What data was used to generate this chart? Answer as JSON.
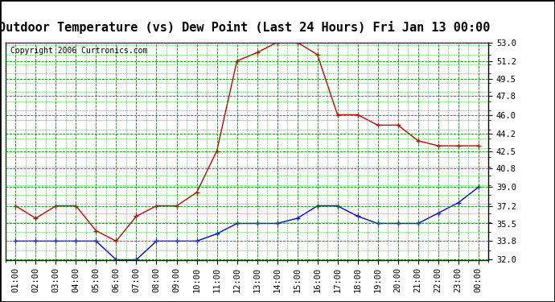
{
  "title": "Outdoor Temperature (vs) Dew Point (Last 24 Hours) Fri Jan 13 00:00",
  "copyright": "Copyright 2006 Curtronics.com",
  "x_labels": [
    "01:00",
    "02:00",
    "03:00",
    "04:00",
    "05:00",
    "06:00",
    "07:00",
    "08:00",
    "09:00",
    "10:00",
    "11:00",
    "12:00",
    "13:00",
    "14:00",
    "15:00",
    "16:00",
    "17:00",
    "18:00",
    "19:00",
    "20:00",
    "21:00",
    "22:00",
    "23:00",
    "00:00"
  ],
  "temp_data": [
    37.2,
    36.0,
    37.2,
    37.2,
    34.8,
    33.8,
    36.2,
    37.2,
    37.2,
    38.5,
    42.5,
    51.2,
    52.0,
    53.0,
    53.0,
    51.8,
    46.0,
    46.0,
    45.0,
    45.0,
    43.5,
    43.0,
    43.0,
    43.0
  ],
  "dew_data": [
    33.8,
    33.8,
    33.8,
    33.8,
    33.8,
    32.0,
    32.0,
    33.8,
    33.8,
    33.8,
    34.5,
    35.5,
    35.5,
    35.5,
    36.0,
    37.2,
    37.2,
    36.2,
    35.5,
    35.5,
    35.5,
    36.5,
    37.5,
    39.0
  ],
  "y_ticks": [
    32.0,
    33.8,
    35.5,
    37.2,
    39.0,
    40.8,
    42.5,
    44.2,
    46.0,
    47.8,
    49.5,
    51.2,
    53.0
  ],
  "y_min": 32.0,
  "y_max": 53.0,
  "temp_color": "#cc0000",
  "dew_color": "#0000cc",
  "bg_color": "#ffffff",
  "plot_bg_color": "#ffffff",
  "grid_color_major": "#008800",
  "grid_color_minor": "#00bb00",
  "title_fontsize": 11,
  "copyright_fontsize": 7,
  "tick_fontsize": 7.5
}
